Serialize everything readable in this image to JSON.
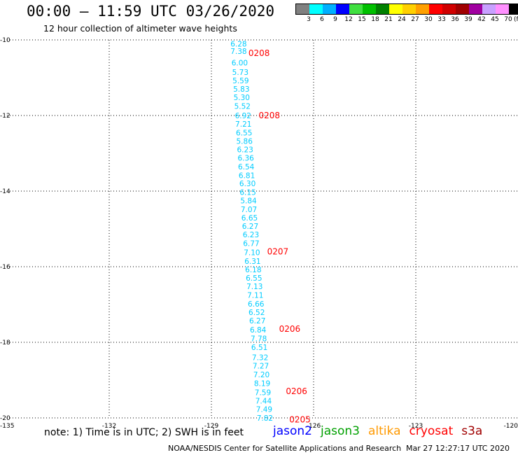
{
  "header": {
    "title": "00:00 – 11:59 UTC 03/26/2020",
    "subtitle": "12 hour collection of altimeter wave heights"
  },
  "color_scale": {
    "labels": [
      "3",
      "6",
      "9",
      "12",
      "15",
      "18",
      "21",
      "24",
      "27",
      "30",
      "33",
      "36",
      "39",
      "42",
      "45",
      "70"
    ],
    "colors": [
      "#808080",
      "#00ffff",
      "#00b0ff",
      "#0000ff",
      "#40e040",
      "#00c000",
      "#008000",
      "#ffff00",
      "#ffd000",
      "#ffa000",
      "#ff0000",
      "#d00000",
      "#a00000",
      "#a000a0",
      "#c8a0ff",
      "#ff90ff",
      "#000000"
    ],
    "unit": "(ft)"
  },
  "chart_data": {
    "type": "scatter",
    "title": "00:00 – 11:59 UTC 03/26/2020",
    "subtitle": "12 hour collection of altimeter wave heights",
    "xlim": [
      -135,
      -120
    ],
    "ylim": [
      -20,
      -10
    ],
    "x_ticks": [
      "-135",
      "-132",
      "-129",
      "-126",
      "-123",
      "-120"
    ],
    "y_ticks": [
      "-10",
      "-12",
      "-14",
      "-16",
      "-18",
      "-20"
    ],
    "grid": true,
    "series": [
      {
        "name": "jason2",
        "color": "#00ccff",
        "points": [
          {
            "lon": -128.2,
            "lat": -10.1,
            "label": "6.28"
          },
          {
            "lon": -128.2,
            "lat": -10.3,
            "label": "7.38"
          },
          {
            "lon": -128.17,
            "lat": -10.6,
            "label": "6.00"
          },
          {
            "lon": -128.15,
            "lat": -10.85,
            "label": "5.73"
          },
          {
            "lon": -128.14,
            "lat": -11.07,
            "label": "5.59"
          },
          {
            "lon": -128.12,
            "lat": -11.3,
            "label": "5.83"
          },
          {
            "lon": -128.11,
            "lat": -11.52,
            "label": "5.30"
          },
          {
            "lon": -128.09,
            "lat": -11.75,
            "label": "5.52"
          },
          {
            "lon": -128.07,
            "lat": -12.0,
            "label": "6.92"
          },
          {
            "lon": -128.06,
            "lat": -12.22,
            "label": "7.21"
          },
          {
            "lon": -128.04,
            "lat": -12.45,
            "label": "6.55"
          },
          {
            "lon": -128.03,
            "lat": -12.68,
            "label": "5.86"
          },
          {
            "lon": -128.01,
            "lat": -12.9,
            "label": "6.23"
          },
          {
            "lon": -127.99,
            "lat": -13.12,
            "label": "6.36"
          },
          {
            "lon": -127.98,
            "lat": -13.35,
            "label": "6.54"
          },
          {
            "lon": -127.96,
            "lat": -13.58,
            "label": "6.81"
          },
          {
            "lon": -127.94,
            "lat": -13.8,
            "label": "6.30"
          },
          {
            "lon": -127.93,
            "lat": -14.03,
            "label": "6.15"
          },
          {
            "lon": -127.91,
            "lat": -14.25,
            "label": "5.84"
          },
          {
            "lon": -127.9,
            "lat": -14.48,
            "label": "7.07"
          },
          {
            "lon": -127.88,
            "lat": -14.7,
            "label": "6.65"
          },
          {
            "lon": -127.86,
            "lat": -14.93,
            "label": "6.27"
          },
          {
            "lon": -127.84,
            "lat": -15.15,
            "label": "6.23"
          },
          {
            "lon": -127.83,
            "lat": -15.38,
            "label": "6.77"
          },
          {
            "lon": -127.81,
            "lat": -15.62,
            "label": "7.10"
          },
          {
            "lon": -127.79,
            "lat": -15.85,
            "label": "6.31"
          },
          {
            "lon": -127.77,
            "lat": -16.07,
            "label": "6.18"
          },
          {
            "lon": -127.75,
            "lat": -16.3,
            "label": "6.55"
          },
          {
            "lon": -127.73,
            "lat": -16.52,
            "label": "7.13"
          },
          {
            "lon": -127.71,
            "lat": -16.75,
            "label": "7.11"
          },
          {
            "lon": -127.69,
            "lat": -16.98,
            "label": "6.66"
          },
          {
            "lon": -127.67,
            "lat": -17.2,
            "label": "6.52"
          },
          {
            "lon": -127.65,
            "lat": -17.43,
            "label": "6.27"
          },
          {
            "lon": -127.63,
            "lat": -17.67,
            "label": "6.84"
          },
          {
            "lon": -127.61,
            "lat": -17.9,
            "label": "7.78"
          },
          {
            "lon": -127.59,
            "lat": -18.13,
            "label": "6.51"
          },
          {
            "lon": -127.57,
            "lat": -18.4,
            "label": "7.32"
          },
          {
            "lon": -127.55,
            "lat": -18.62,
            "label": "7.27"
          },
          {
            "lon": -127.53,
            "lat": -18.85,
            "label": "7.20"
          },
          {
            "lon": -127.51,
            "lat": -19.08,
            "label": "8.19"
          },
          {
            "lon": -127.49,
            "lat": -19.32,
            "label": "7.59"
          },
          {
            "lon": -127.47,
            "lat": -19.55,
            "label": "7.44"
          },
          {
            "lon": -127.45,
            "lat": -19.77,
            "label": "7.49"
          },
          {
            "lon": -127.43,
            "lat": -20.0,
            "label": "7.82"
          }
        ]
      },
      {
        "name": "time",
        "color": "#ff0000",
        "points": [
          {
            "lon": -127.6,
            "lat": -10.35,
            "label": "0208"
          },
          {
            "lon": -127.3,
            "lat": -12.0,
            "label": "0208"
          },
          {
            "lon": -127.05,
            "lat": -15.6,
            "label": "0207"
          },
          {
            "lon": -126.7,
            "lat": -17.65,
            "label": "0206"
          },
          {
            "lon": -126.5,
            "lat": -19.3,
            "label": "0206"
          },
          {
            "lon": -126.4,
            "lat": -20.05,
            "label": "0205"
          }
        ]
      }
    ]
  },
  "footer": {
    "note": "note: 1) Time is in UTC; 2) SWH is in feet",
    "satellites": [
      {
        "name": "jason2",
        "color": "#0000ff"
      },
      {
        "name": "jason3",
        "color": "#00a000"
      },
      {
        "name": "altika",
        "color": "#ff9900"
      },
      {
        "name": "cryosat",
        "color": "#ff0000"
      },
      {
        "name": "s3a",
        "color": "#a00000"
      }
    ],
    "credit": "NOAA/NESDIS Center for Satellite Applications and Research",
    "timestamp": "Mar 27 12:27:17 UTC 2020"
  }
}
